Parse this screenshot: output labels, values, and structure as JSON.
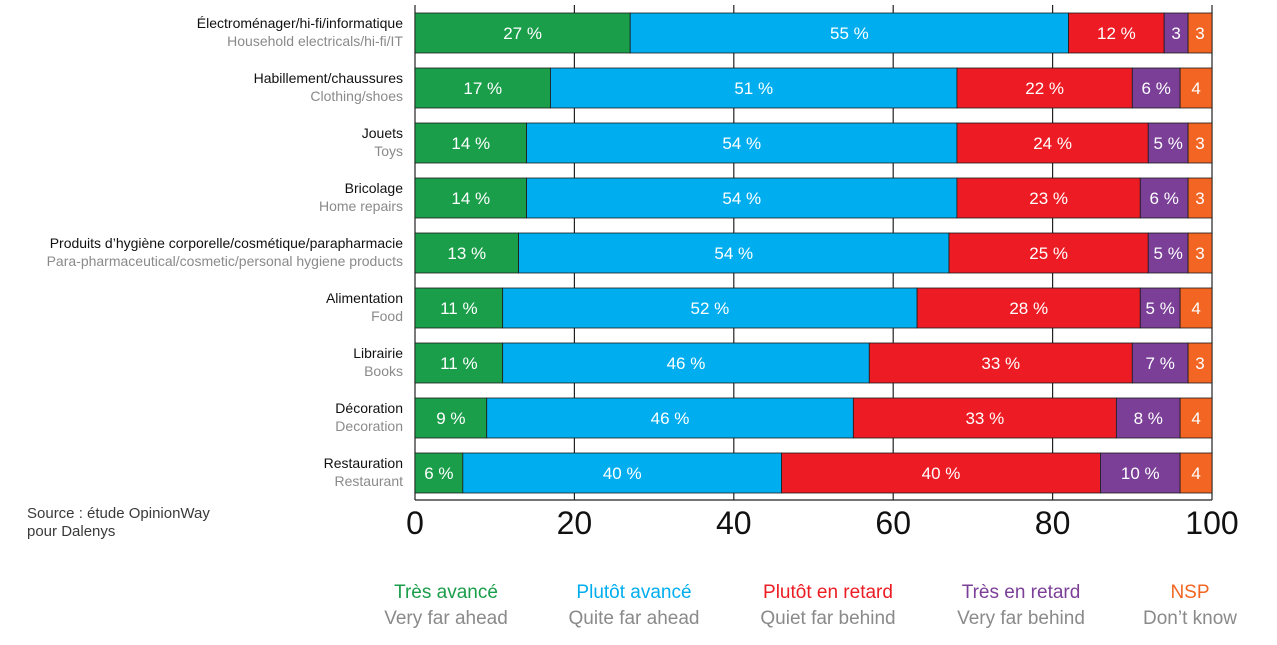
{
  "chart_data": {
    "type": "bar",
    "orientation": "horizontal",
    "stacked": true,
    "categories": [
      {
        "fr": "Électroménager/hi-fi/informatique",
        "en": "Household electricals/hi-fi/IT"
      },
      {
        "fr": "Habillement/chaussures",
        "en": "Clothing/shoes"
      },
      {
        "fr": "Jouets",
        "en": "Toys"
      },
      {
        "fr": "Bricolage",
        "en": "Home repairs"
      },
      {
        "fr": "Produits d’hygiène corporelle/cosmétique/parapharmacie",
        "en": "Para-pharmaceutical/cosmetic/personal hygiene products"
      },
      {
        "fr": "Alimentation",
        "en": "Food"
      },
      {
        "fr": "Librairie",
        "en": "Books"
      },
      {
        "fr": "Décoration",
        "en": "Decoration"
      },
      {
        "fr": "Restauration",
        "en": "Restaurant"
      }
    ],
    "series": [
      {
        "name": "Très avancé",
        "name_en": "Very far ahead",
        "color": "#1a9e4a",
        "values": [
          27,
          17,
          14,
          14,
          13,
          11,
          11,
          9,
          6
        ],
        "labels": [
          "27 %",
          "17 %",
          "14 %",
          "14 %",
          "13 %",
          "11 %",
          "11 %",
          "9 %",
          "6 %"
        ]
      },
      {
        "name": "Plutôt avancé",
        "name_en": "Quite far ahead",
        "color": "#00aeef",
        "values": [
          55,
          51,
          54,
          54,
          54,
          52,
          46,
          46,
          40
        ],
        "labels": [
          "55 %",
          "51 %",
          "54 %",
          "54 %",
          "54 %",
          "52 %",
          "46 %",
          "46 %",
          "40 %"
        ]
      },
      {
        "name": "Plutôt en retard",
        "name_en": "Quiet far behind",
        "color": "#ed1c24",
        "values": [
          12,
          22,
          24,
          23,
          25,
          28,
          33,
          33,
          40
        ],
        "labels": [
          "12 %",
          "22 %",
          "24 %",
          "23 %",
          "25 %",
          "28 %",
          "33 %",
          "33 %",
          "40 %"
        ]
      },
      {
        "name": "Très en retard",
        "name_en": "Very far behind",
        "color": "#7b3f98",
        "values": [
          3,
          6,
          5,
          6,
          5,
          5,
          7,
          8,
          10
        ],
        "labels": [
          "3",
          "6 %",
          "5 %",
          "6 %",
          "5 %",
          "5 %",
          "7 %",
          "8 %",
          "10 %"
        ]
      },
      {
        "name": "NSP",
        "name_en": "Don’t know",
        "color": "#f26522",
        "values": [
          3,
          4,
          3,
          3,
          3,
          4,
          3,
          4,
          4
        ],
        "labels": [
          "3",
          "4",
          "3",
          "3",
          "3",
          "4",
          "3",
          "4",
          "4"
        ]
      }
    ],
    "xlim": [
      0,
      100
    ],
    "xticks": [
      "0",
      "20",
      "40",
      "60",
      "80",
      "100"
    ],
    "grid": true
  },
  "source": {
    "line1": "Source : étude OpinionWay",
    "line2": "pour Dalenys"
  }
}
